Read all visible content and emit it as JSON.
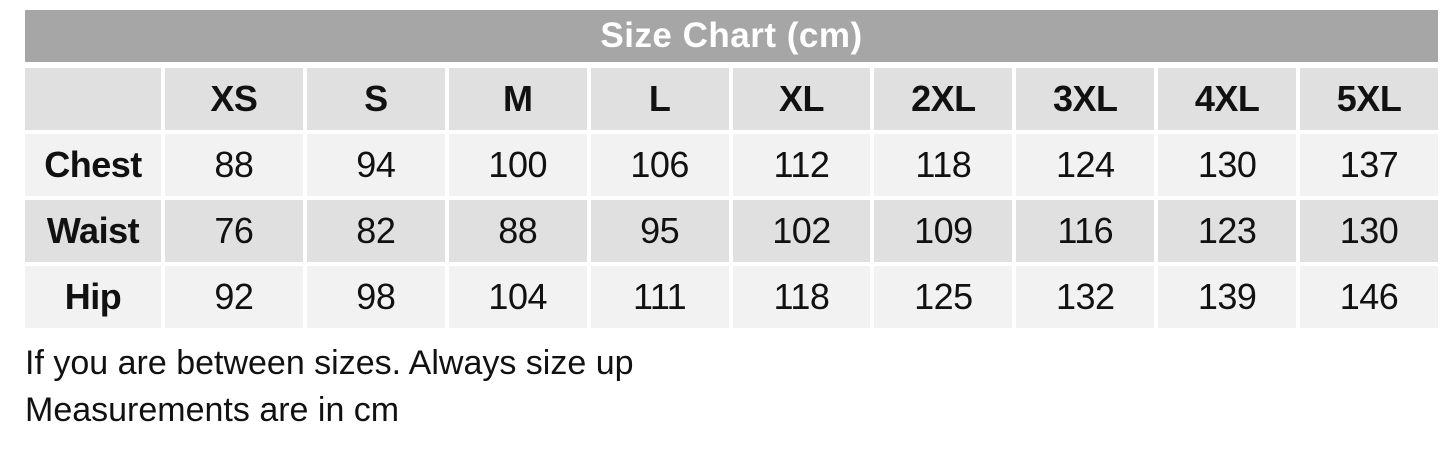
{
  "chart_data": {
    "type": "table",
    "title": "Size Chart (cm)",
    "size_headers": [
      "XS",
      "S",
      "M",
      "L",
      "XL",
      "2XL",
      "3XL",
      "4XL",
      "5XL"
    ],
    "rows": [
      {
        "label": "Chest",
        "values": [
          88,
          94,
          100,
          106,
          112,
          118,
          124,
          130,
          137
        ]
      },
      {
        "label": "Waist",
        "values": [
          76,
          82,
          88,
          95,
          102,
          109,
          116,
          123,
          130
        ]
      },
      {
        "label": "Hip",
        "values": [
          92,
          98,
          104,
          111,
          118,
          125,
          132,
          139,
          146
        ]
      }
    ],
    "unit": "cm"
  },
  "notes": {
    "line1": "If you are between sizes. Always size up",
    "line2": "Measurements are in cm"
  },
  "colors": {
    "title_bar_bg": "#a6a6a6",
    "title_text": "#ffffff",
    "band_dark": "#e0e0e0",
    "band_light": "#f2f2f2",
    "text": "#111111",
    "page_bg": "#ffffff"
  }
}
